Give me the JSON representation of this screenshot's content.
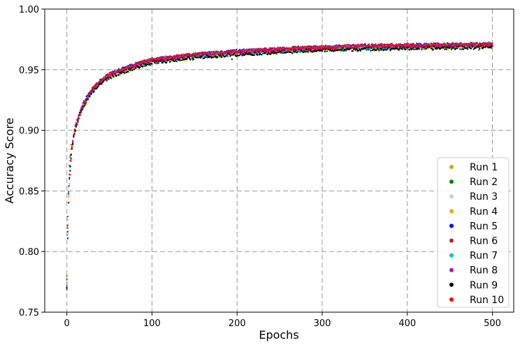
{
  "chart_data": {
    "type": "scatter",
    "title": "",
    "xlabel": "Epochs",
    "ylabel": "Accuracy Score",
    "xlim": [
      -26,
      525
    ],
    "ylim": [
      0.75,
      1.0
    ],
    "x_ticks": [
      0,
      100,
      200,
      300,
      400,
      500
    ],
    "x_tick_labels": [
      "0",
      "100",
      "200",
      "300",
      "400",
      "500"
    ],
    "y_ticks": [
      0.75,
      0.8,
      0.85,
      0.9,
      0.95,
      1.0
    ],
    "y_tick_labels": [
      "0.75",
      "0.80",
      "0.85",
      "0.90",
      "0.95",
      "1.00"
    ],
    "grid": true,
    "legend_position": "lower-right",
    "curve_shape": {
      "epochs": [
        0,
        1,
        2,
        3,
        5,
        8,
        10,
        15,
        20,
        30,
        40,
        50,
        60,
        80,
        100,
        150,
        200,
        250,
        300,
        350,
        400,
        450,
        500
      ],
      "accuracy": [
        0.775,
        0.82,
        0.845,
        0.862,
        0.88,
        0.895,
        0.902,
        0.913,
        0.922,
        0.933,
        0.94,
        0.945,
        0.948,
        0.953,
        0.957,
        0.9615,
        0.964,
        0.966,
        0.9675,
        0.9685,
        0.969,
        0.9695,
        0.97
      ]
    },
    "spread": 0.0015,
    "series": [
      {
        "name": "Run 1",
        "color": "#c8b400",
        "offset": 0.0
      },
      {
        "name": "Run 2",
        "color": "#008000",
        "offset": -0.001
      },
      {
        "name": "Run 3",
        "color": "#add8e6",
        "offset": 0.0002
      },
      {
        "name": "Run 4",
        "color": "#ffa500",
        "offset": 0.0004
      },
      {
        "name": "Run 5",
        "color": "#0000ff",
        "offset": 0.0012
      },
      {
        "name": "Run 6",
        "color": "#a52a2a",
        "offset": 0.0006
      },
      {
        "name": "Run 7",
        "color": "#00bfd8",
        "offset": 0.0
      },
      {
        "name": "Run 8",
        "color": "#c000c0",
        "offset": 0.001
      },
      {
        "name": "Run 9",
        "color": "#000000",
        "offset": -0.0014
      },
      {
        "name": "Run 10",
        "color": "#ff0000",
        "offset": 0.0012
      }
    ]
  }
}
